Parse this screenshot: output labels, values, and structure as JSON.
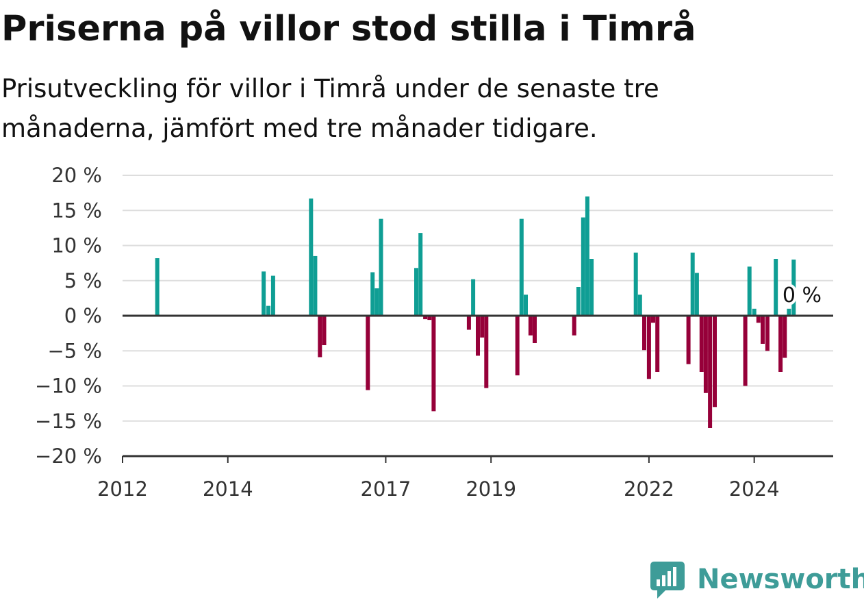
{
  "title": "Priserna på villor stod stilla i Timrå",
  "subtitle": "Prisutveckling för villor i Timrå under de senaste tre månaderna, jämfört med tre månader tidigare.",
  "brand": {
    "name": "Newsworthy",
    "color": "#3e9c98",
    "icon": "newsworthy-logo-icon"
  },
  "colors": {
    "positive": "#0f9e94",
    "negative": "#960039",
    "grid": "#dddddd",
    "axis": "#333333"
  },
  "chart_data": {
    "type": "bar",
    "title": "Priserna på villor stod stilla i Timrå",
    "subtitle": "Prisutveckling för villor i Timrå under de senaste tre månaderna, jämfört med tre månader tidigare.",
    "xlabel": "",
    "ylabel": "",
    "ylim": [
      -20,
      20
    ],
    "xlim": [
      2012.0,
      2025.5
    ],
    "grid": true,
    "legend": "none",
    "y_ticks": [
      {
        "value": 20,
        "label": "20 %"
      },
      {
        "value": 15,
        "label": "15 %"
      },
      {
        "value": 10,
        "label": "10 %"
      },
      {
        "value": 5,
        "label": "5 %"
      },
      {
        "value": 0,
        "label": "0 %"
      },
      {
        "value": -5,
        "label": "−5 %"
      },
      {
        "value": -10,
        "label": "−10 %"
      },
      {
        "value": -15,
        "label": "−15 %"
      },
      {
        "value": -20,
        "label": "−20 %"
      }
    ],
    "x_ticks": [
      {
        "value": 2012,
        "label": "2012"
      },
      {
        "value": 2014,
        "label": "2014"
      },
      {
        "value": 2017,
        "label": "2017"
      },
      {
        "value": 2019,
        "label": "2019"
      },
      {
        "value": 2022,
        "label": "2022"
      },
      {
        "value": 2024,
        "label": "2024"
      }
    ],
    "series": [
      {
        "x": [
          2012.66,
          2014.68,
          2014.77,
          2014.86,
          2015.58,
          2015.66,
          2015.75,
          2015.83,
          2016.66,
          2016.75,
          2016.83,
          2016.91,
          2017.58,
          2017.66,
          2017.75,
          2017.83,
          2017.91,
          2018.58,
          2018.66,
          2018.75,
          2018.83,
          2018.91,
          2019.5,
          2019.58,
          2019.66,
          2019.75,
          2019.83,
          2020.58,
          2020.66,
          2020.75,
          2020.83,
          2020.91,
          2021.75,
          2021.83,
          2021.91,
          2022.0,
          2022.08,
          2022.16,
          2022.75,
          2022.83,
          2022.91,
          2023.0,
          2023.08,
          2023.16,
          2023.25,
          2023.83,
          2023.91,
          2024.0,
          2024.08,
          2024.16,
          2024.25,
          2024.41,
          2024.5,
          2024.58,
          2024.66,
          2024.75,
          2024.83
        ],
        "values": [
          8.2,
          6.3,
          1.4,
          5.7,
          16.7,
          8.5,
          -5.9,
          -4.2,
          -10.6,
          6.2,
          3.9,
          13.8,
          6.8,
          11.8,
          -0.5,
          -0.6,
          -13.6,
          -2.0,
          5.2,
          -5.7,
          -3.1,
          -10.3,
          -8.5,
          13.8,
          3.0,
          -2.8,
          -3.9,
          -2.8,
          4.1,
          14.0,
          17.0,
          8.1,
          9.0,
          3.0,
          -4.9,
          -9.0,
          -1.0,
          -8.0,
          -6.9,
          9.0,
          6.1,
          -8.0,
          -11.0,
          -16.0,
          -13.0,
          -10.0,
          7.0,
          1.0,
          -1.0,
          -4.0,
          -5.0,
          8.1,
          -8.0,
          -6.0,
          1.0,
          8.0,
          0.0
        ]
      }
    ],
    "annotations": [
      {
        "text": "0 %",
        "x": 2024.83,
        "y": 0.0
      }
    ]
  }
}
